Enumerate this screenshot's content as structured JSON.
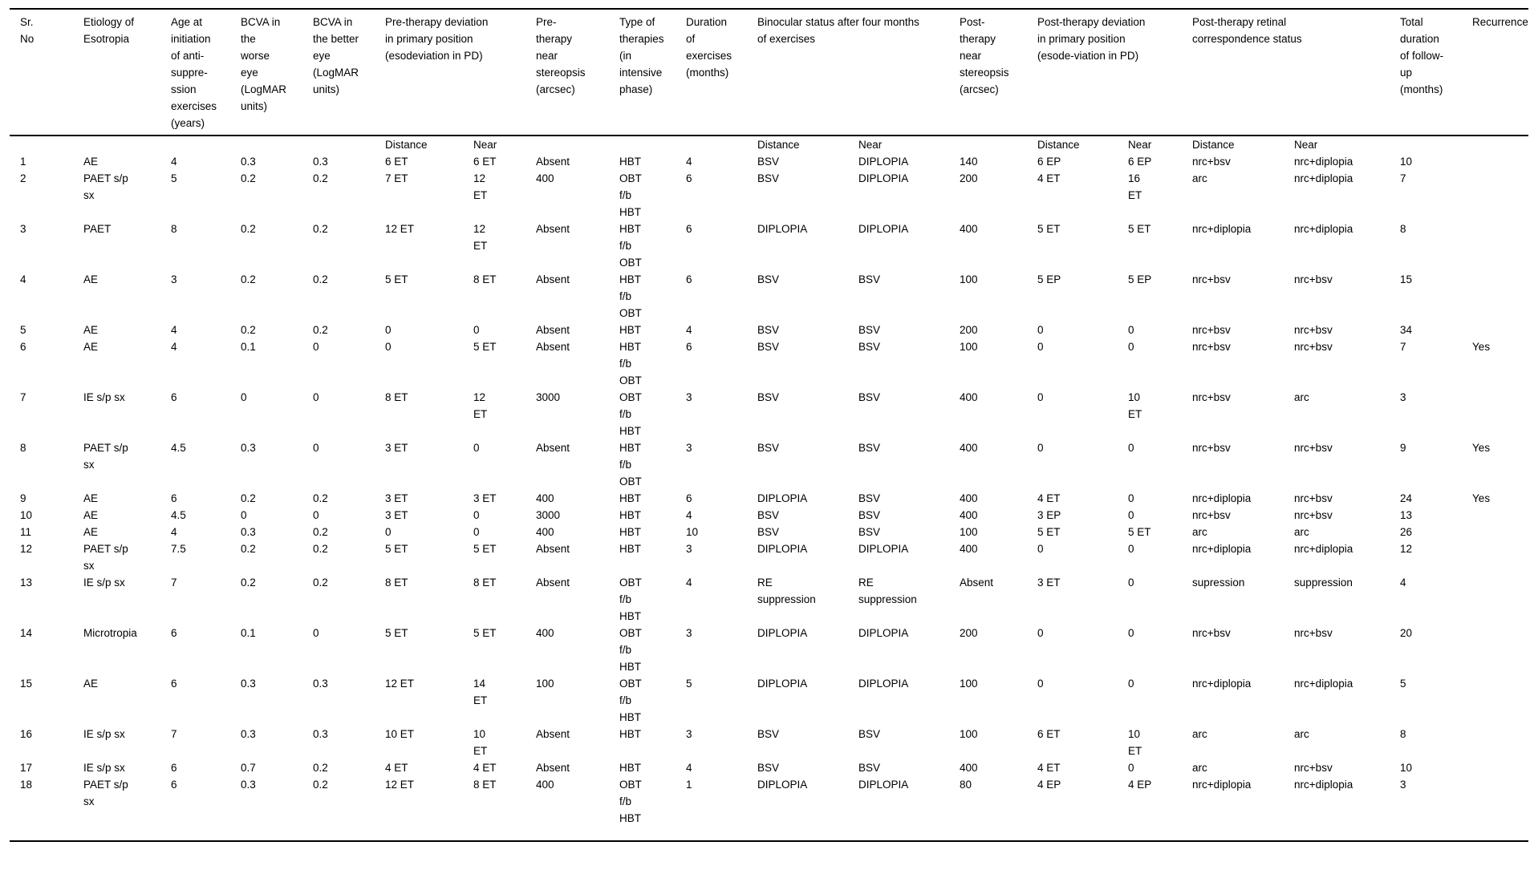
{
  "table": {
    "header": [
      {
        "label": "Sr.\nNo",
        "span": 1
      },
      {
        "label": "Etiology of\nEsotropia",
        "span": 1
      },
      {
        "label": "Age at\ninitiation\nof anti-\nsuppre-\nssion\nexercises\n(years)",
        "span": 1
      },
      {
        "label": "BCVA in\nthe\nworse\neye\n(LogMAR\nunits)",
        "span": 1
      },
      {
        "label": "BCVA in\nthe better\neye\n(LogMAR\nunits)",
        "span": 1
      },
      {
        "label": "Pre-therapy deviation\nin primary position\n(esodeviation in PD)",
        "span": 2
      },
      {
        "label": "Pre-\ntherapy\nnear\nstereopsis\n(arcsec)",
        "span": 1
      },
      {
        "label": "Type of\ntherapies\n(in\nintensive\nphase)",
        "span": 1
      },
      {
        "label": "Duration\nof\nexercises\n(months)",
        "span": 1
      },
      {
        "label": "Binocular status after four months\nof exercises",
        "span": 2
      },
      {
        "label": "Post-\ntherapy\nnear\nstereopsis\n(arcsec)",
        "span": 1
      },
      {
        "label": "Post-therapy deviation\nin primary position\n(esode-viation in PD)",
        "span": 2
      },
      {
        "label": "Post-therapy retinal\ncorrespondence status",
        "span": 2
      },
      {
        "label": "Total\nduration\nof follow-\nup\n(months)",
        "span": 1
      },
      {
        "label": "Recurrence",
        "span": 1
      }
    ],
    "subheader": [
      "",
      "",
      "",
      "",
      "",
      "Distance",
      "Near",
      "",
      "",
      "",
      "Distance",
      "Near",
      "",
      "Distance",
      "Near",
      "Distance",
      "Near",
      "",
      ""
    ],
    "rows": [
      [
        "1",
        "AE",
        "4",
        "0.3",
        "0.3",
        "6 ET",
        "6 ET",
        "Absent",
        "HBT",
        "4",
        "BSV",
        "DIPLOPIA",
        "140",
        "6 EP",
        "6 EP",
        "nrc+bsv",
        "nrc+diplopia",
        "10",
        ""
      ],
      [
        "2",
        "PAET s/p\nsx",
        "5",
        "0.2",
        "0.2",
        "7 ET",
        "12\nET",
        "400",
        "OBT\nf/b\nHBT",
        "6",
        "BSV",
        "DIPLOPIA",
        "200",
        "4 ET",
        "16\nET",
        "arc",
        "nrc+diplopia",
        "7",
        ""
      ],
      [
        "3",
        "PAET",
        "8",
        "0.2",
        "0.2",
        "12 ET",
        "12\nET",
        "Absent",
        "HBT\nf/b\nOBT",
        "6",
        "DIPLOPIA",
        "DIPLOPIA",
        "400",
        "5 ET",
        "5 ET",
        "nrc+diplopia",
        "nrc+diplopia",
        "8",
        ""
      ],
      [
        "4",
        "AE",
        "3",
        "0.2",
        "0.2",
        "5 ET",
        "8 ET",
        "Absent",
        "HBT\nf/b\nOBT",
        "6",
        "BSV",
        "BSV",
        "100",
        "5 EP",
        "5 EP",
        "nrc+bsv",
        "nrc+bsv",
        "15",
        ""
      ],
      [
        "5",
        "AE",
        "4",
        "0.2",
        "0.2",
        "0",
        "0",
        "Absent",
        "HBT",
        "4",
        "BSV",
        "BSV",
        "200",
        "0",
        "0",
        "nrc+bsv",
        "nrc+bsv",
        "34",
        ""
      ],
      [
        "6",
        "AE",
        "4",
        "0.1",
        "0",
        "0",
        "5 ET",
        "Absent",
        "HBT\nf/b\nOBT",
        "6",
        "BSV",
        "BSV",
        "100",
        "0",
        "0",
        "nrc+bsv",
        "nrc+bsv",
        "7",
        "Yes"
      ],
      [
        "7",
        "IE s/p sx",
        "6",
        "0",
        "0",
        "8 ET",
        "12\nET",
        "3000",
        "OBT\nf/b\nHBT",
        "3",
        "BSV",
        "BSV",
        "400",
        "0",
        "10\nET",
        "nrc+bsv",
        "arc",
        "3",
        ""
      ],
      [
        "8",
        "PAET s/p\nsx",
        "4.5",
        "0.3",
        "0",
        "3 ET",
        "0",
        "Absent",
        "HBT\nf/b\nOBT",
        "3",
        "BSV",
        "BSV",
        "400",
        "0",
        "0",
        "nrc+bsv",
        "nrc+bsv",
        "9",
        "Yes"
      ],
      [
        "9",
        "AE",
        "6",
        "0.2",
        "0.2",
        "3 ET",
        "3 ET",
        "400",
        "HBT",
        "6",
        "DIPLOPIA",
        "BSV",
        "400",
        "4 ET",
        "0",
        "nrc+diplopia",
        "nrc+bsv",
        "24",
        "Yes"
      ],
      [
        "10",
        "AE",
        "4.5",
        "0",
        "0",
        "3 ET",
        "0",
        "3000",
        "HBT",
        "4",
        "BSV",
        "BSV",
        "400",
        "3 EP",
        "0",
        "nrc+bsv",
        "nrc+bsv",
        "13",
        ""
      ],
      [
        "11",
        "AE",
        "4",
        "0.3",
        "0.2",
        "0",
        "0",
        "400",
        "HBT",
        "10",
        "BSV",
        "BSV",
        "100",
        "5 ET",
        "5 ET",
        "arc",
        "arc",
        "26",
        ""
      ],
      [
        "12",
        "PAET s/p\nsx",
        "7.5",
        "0.2",
        "0.2",
        "5 ET",
        "5 ET",
        "Absent",
        "HBT",
        "3",
        "DIPLOPIA",
        "DIPLOPIA",
        "400",
        "0",
        "0",
        "nrc+diplopia",
        "nrc+diplopia",
        "12",
        ""
      ],
      [
        "13",
        "IE s/p sx",
        "7",
        "0.2",
        "0.2",
        "8 ET",
        "8 ET",
        "Absent",
        "OBT\nf/b\nHBT",
        "4",
        "RE\nsuppression",
        "RE\nsuppression",
        "Absent",
        "3 ET",
        "0",
        "supression",
        "suppression",
        "4",
        ""
      ],
      [
        "14",
        "Microtropia",
        "6",
        "0.1",
        "0",
        "5 ET",
        "5 ET",
        "400",
        "OBT\nf/b\nHBT",
        "3",
        "DIPLOPIA",
        "DIPLOPIA",
        "200",
        "0",
        "0",
        "nrc+bsv",
        "nrc+bsv",
        "20",
        ""
      ],
      [
        "15",
        "AE",
        "6",
        "0.3",
        "0.3",
        "12 ET",
        "14\nET",
        "100",
        "OBT\nf/b\nHBT",
        "5",
        "DIPLOPIA",
        "DIPLOPIA",
        "100",
        "0",
        "0",
        "nrc+diplopia",
        "nrc+diplopia",
        "5",
        ""
      ],
      [
        "16",
        "IE s/p sx",
        "7",
        "0.3",
        "0.3",
        "10 ET",
        "10\nET",
        "Absent",
        "HBT",
        "3",
        "BSV",
        "BSV",
        "100",
        "6 ET",
        "10\nET",
        "arc",
        "arc",
        "8",
        ""
      ],
      [
        "17",
        "IE s/p sx",
        "6",
        "0.7",
        "0.2",
        "4 ET",
        "4 ET",
        "Absent",
        "HBT",
        "4",
        "BSV",
        "BSV",
        "400",
        "4 ET",
        "0",
        "arc",
        "nrc+bsv",
        "10",
        ""
      ],
      [
        "18",
        "PAET s/p\nsx",
        "6",
        "0.3",
        "0.2",
        "12 ET",
        "8 ET",
        "400",
        "OBT\nf/b\nHBT",
        "1",
        "DIPLOPIA",
        "DIPLOPIA",
        "80",
        "4 EP",
        "4 EP",
        "nrc+diplopia",
        "nrc+diplopia",
        "3",
        ""
      ]
    ]
  }
}
